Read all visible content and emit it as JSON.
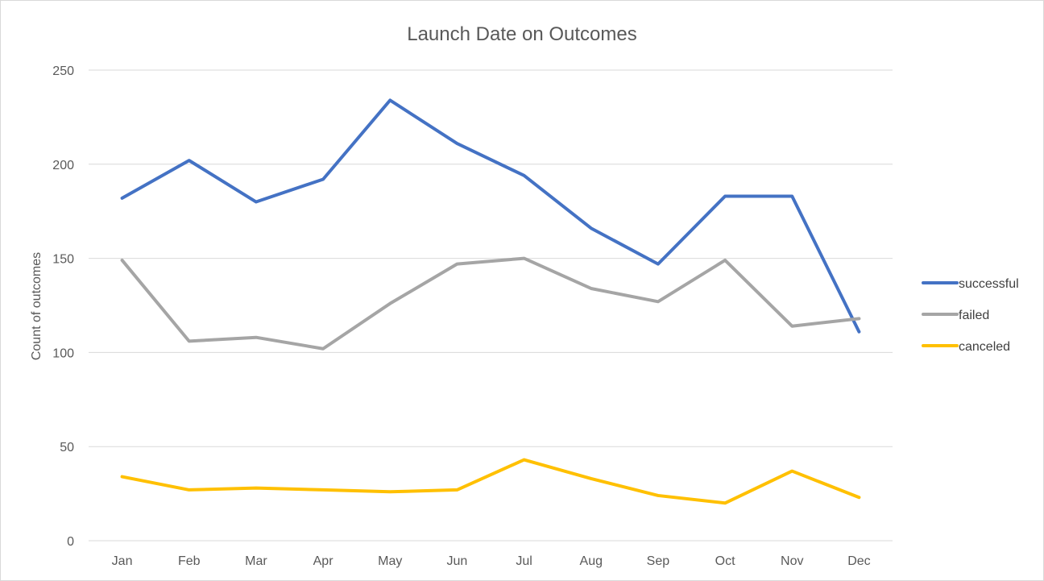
{
  "chart_data": {
    "type": "line",
    "title": "Launch Date on Outcomes",
    "xlabel": "",
    "ylabel": "Count of outcomes",
    "categories": [
      "Jan",
      "Feb",
      "Mar",
      "Apr",
      "May",
      "Jun",
      "Jul",
      "Aug",
      "Sep",
      "Oct",
      "Nov",
      "Dec"
    ],
    "ylim": [
      0,
      250
    ],
    "yticks": [
      0,
      50,
      100,
      150,
      200,
      250
    ],
    "grid": true,
    "legend_position": "right",
    "series": [
      {
        "name": "successful",
        "color": "#4472C4",
        "values": [
          182,
          202,
          180,
          192,
          234,
          211,
          194,
          166,
          147,
          183,
          183,
          111
        ]
      },
      {
        "name": "failed",
        "color": "#A5A5A5",
        "values": [
          149,
          106,
          108,
          102,
          126,
          147,
          150,
          134,
          127,
          149,
          114,
          118
        ]
      },
      {
        "name": "canceled",
        "color": "#FFC000",
        "values": [
          34,
          27,
          28,
          27,
          26,
          27,
          43,
          33,
          24,
          20,
          37,
          23
        ]
      }
    ]
  }
}
